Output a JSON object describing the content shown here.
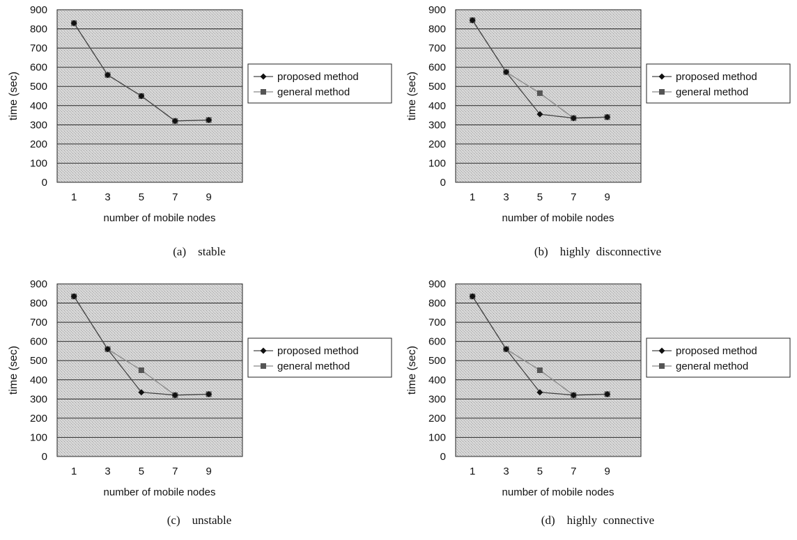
{
  "legend": {
    "proposed": "proposed method",
    "general": "general method"
  },
  "chart_data": [
    {
      "type": "line",
      "caption_label": "(a)",
      "caption_text": "stable",
      "xlabel": "number of mobile nodes",
      "ylabel": "time (sec)",
      "categories": [
        "1",
        "3",
        "5",
        "7",
        "9"
      ],
      "y_ticks": [
        "0",
        "100",
        "200",
        "300",
        "400",
        "500",
        "600",
        "700",
        "800",
        "900"
      ],
      "ylim": [
        0,
        900
      ],
      "grid": true,
      "legend_position": "right",
      "series": [
        {
          "name": "proposed method",
          "values": [
            830,
            560,
            450,
            320,
            325
          ]
        },
        {
          "name": "general method",
          "values": [
            830,
            560,
            450,
            320,
            325
          ]
        }
      ]
    },
    {
      "type": "line",
      "caption_label": "(b)",
      "caption_text": "highly  disconnective",
      "xlabel": "number of mobile nodes",
      "ylabel": "time (sec)",
      "categories": [
        "1",
        "3",
        "5",
        "7",
        "9"
      ],
      "y_ticks": [
        "0",
        "100",
        "200",
        "300",
        "400",
        "500",
        "600",
        "700",
        "800",
        "900"
      ],
      "ylim": [
        0,
        900
      ],
      "grid": true,
      "legend_position": "right",
      "series": [
        {
          "name": "proposed method",
          "values": [
            845,
            575,
            355,
            335,
            340
          ]
        },
        {
          "name": "general method",
          "values": [
            845,
            575,
            465,
            335,
            340
          ]
        }
      ]
    },
    {
      "type": "line",
      "caption_label": "(c)",
      "caption_text": "unstable",
      "xlabel": "number of mobile nodes",
      "ylabel": "time (sec)",
      "categories": [
        "1",
        "3",
        "5",
        "7",
        "9"
      ],
      "y_ticks": [
        "0",
        "100",
        "200",
        "300",
        "400",
        "500",
        "600",
        "700",
        "800",
        "900"
      ],
      "ylim": [
        0,
        900
      ],
      "grid": true,
      "legend_position": "right",
      "series": [
        {
          "name": "proposed method",
          "values": [
            835,
            560,
            335,
            320,
            325
          ]
        },
        {
          "name": "general method",
          "values": [
            835,
            560,
            450,
            320,
            325
          ]
        }
      ]
    },
    {
      "type": "line",
      "caption_label": "(d)",
      "caption_text": "highly  connective",
      "xlabel": "number of mobile nodes",
      "ylabel": "time (sec)",
      "categories": [
        "1",
        "3",
        "5",
        "7",
        "9"
      ],
      "y_ticks": [
        "0",
        "100",
        "200",
        "300",
        "400",
        "500",
        "600",
        "700",
        "800",
        "900"
      ],
      "ylim": [
        0,
        900
      ],
      "grid": true,
      "legend_position": "right",
      "series": [
        {
          "name": "proposed method",
          "values": [
            835,
            560,
            335,
            320,
            325
          ]
        },
        {
          "name": "general method",
          "values": [
            835,
            560,
            450,
            320,
            325
          ]
        }
      ]
    }
  ]
}
